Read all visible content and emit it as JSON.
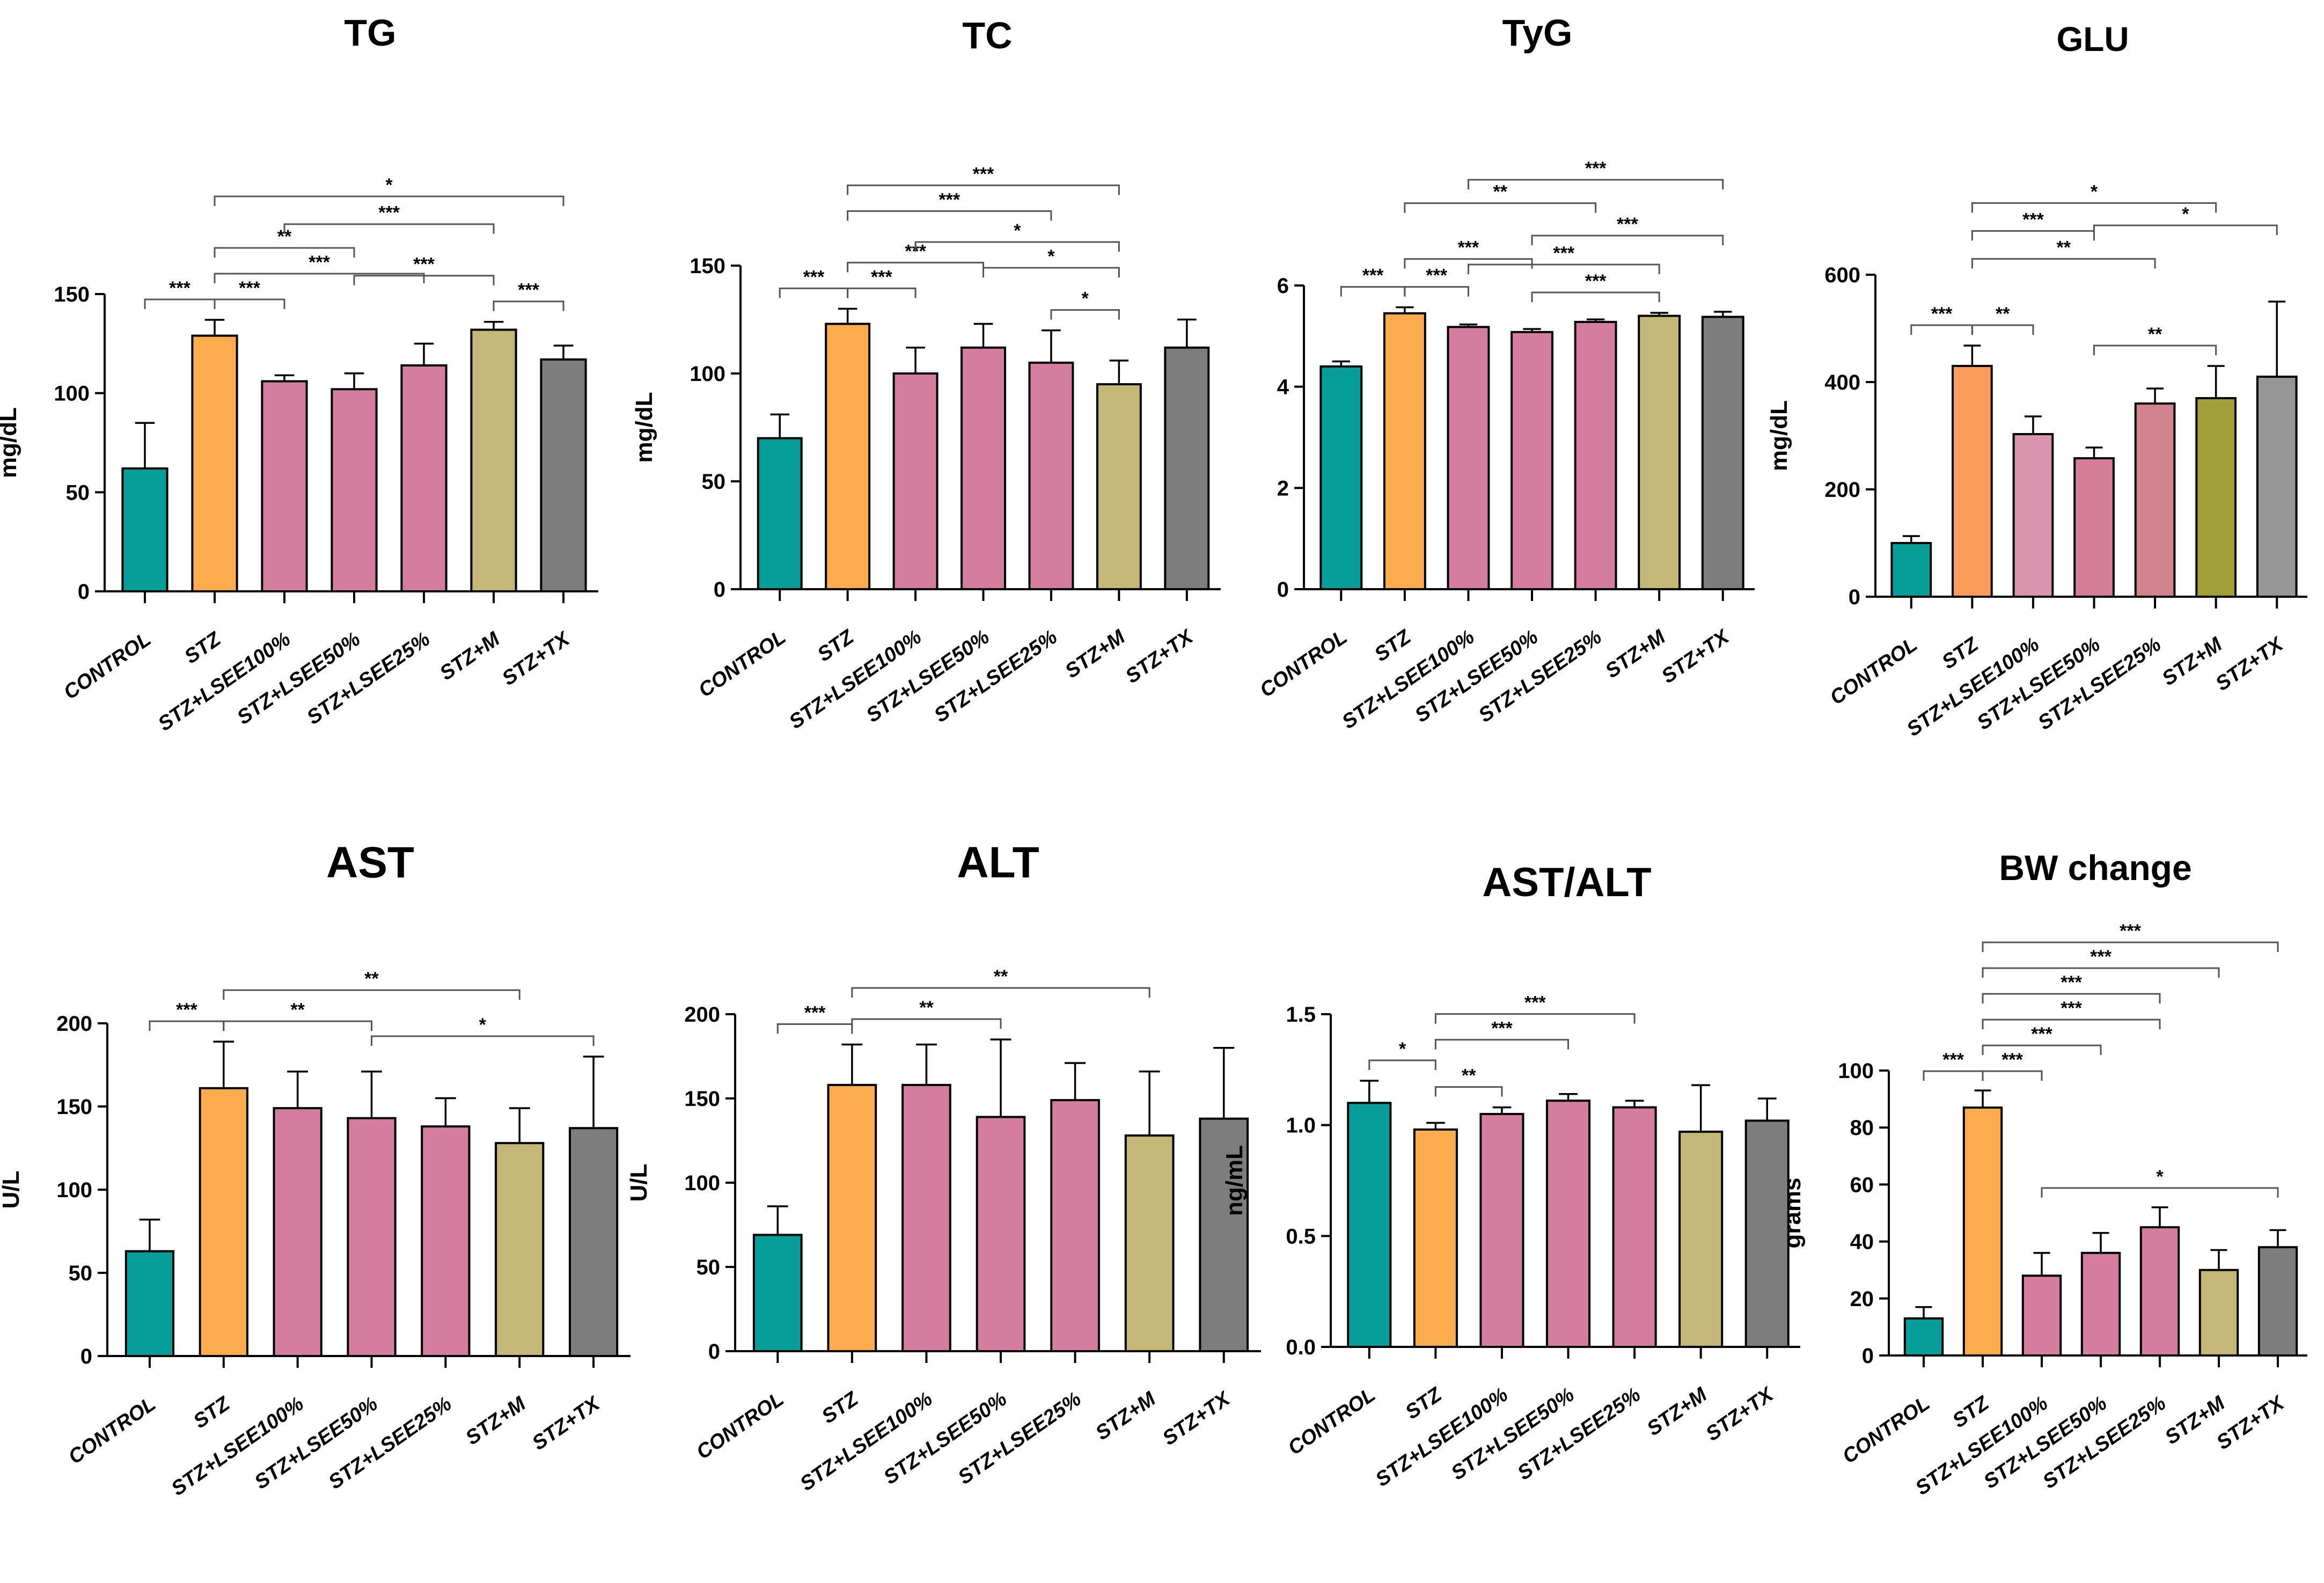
{
  "chart_data": [
    {
      "id": "tg",
      "type": "bar",
      "title": "TG",
      "ylabel": "mg/dL",
      "ylim": [
        0,
        150
      ],
      "yticks": [
        0,
        50,
        100,
        150
      ],
      "categories": [
        "CONTROL",
        "STZ",
        "STZ+LSEE100%",
        "STZ+LSEE50%",
        "STZ+LSEE25%",
        "STZ+M",
        "STZ+TX"
      ],
      "values": [
        62,
        129,
        106,
        102,
        114,
        132,
        117
      ],
      "errors": [
        23,
        8,
        3,
        8,
        11,
        4,
        7
      ],
      "colors": [
        "#079e9a",
        "#fcab4f",
        "#d57d9f",
        "#d57d9f",
        "#d57d9f",
        "#c4b777",
        "#7d7d7d"
      ],
      "significance": [
        {
          "from": 0,
          "to": 1,
          "label": "***"
        },
        {
          "from": 1,
          "to": 2,
          "label": "***"
        },
        {
          "from": 5,
          "to": 6,
          "label": "***"
        },
        {
          "from": 1,
          "to": 4,
          "label": "***"
        },
        {
          "from": 3,
          "to": 5,
          "label": "***"
        },
        {
          "from": 1,
          "to": 3,
          "label": "**"
        },
        {
          "from": 2,
          "to": 5,
          "label": "***"
        },
        {
          "from": 1,
          "to": 6,
          "label": "*"
        }
      ]
    },
    {
      "id": "tc",
      "type": "bar",
      "title": "TC",
      "ylabel": "mg/dL",
      "ylim": [
        0,
        150
      ],
      "yticks": [
        0,
        50,
        100,
        150
      ],
      "categories": [
        "CONTROL",
        "STZ",
        "STZ+LSEE100%",
        "STZ+LSEE50%",
        "STZ+LSEE25%",
        "STZ+M",
        "STZ+TX"
      ],
      "values": [
        70,
        123,
        100,
        112,
        105,
        95,
        112
      ],
      "errors": [
        11,
        7,
        12,
        11,
        15,
        11,
        13
      ],
      "colors": [
        "#079e9a",
        "#fcab4f",
        "#d57d9f",
        "#d57d9f",
        "#d57d9f",
        "#c4b777",
        "#7d7d7d"
      ],
      "significance": [
        {
          "from": 0,
          "to": 1,
          "label": "***"
        },
        {
          "from": 1,
          "to": 2,
          "label": "***"
        },
        {
          "from": 4,
          "to": 5,
          "label": "*"
        },
        {
          "from": 3,
          "to": 5,
          "label": "*"
        },
        {
          "from": 1,
          "to": 3,
          "label": "***"
        },
        {
          "from": 2,
          "to": 5,
          "label": "*"
        },
        {
          "from": 1,
          "to": 4,
          "label": "***"
        },
        {
          "from": 1,
          "to": 5,
          "label": "***"
        }
      ]
    },
    {
      "id": "tyg",
      "type": "bar",
      "title": "TyG",
      "ylabel": "",
      "ylim": [
        0,
        6
      ],
      "yticks": [
        0,
        2,
        4,
        6
      ],
      "categories": [
        "CONTROL",
        "STZ",
        "STZ+LSEE100%",
        "STZ+LSEE50%",
        "STZ+LSEE25%",
        "STZ+M",
        "STZ+TX"
      ],
      "values": [
        4.4,
        5.45,
        5.18,
        5.08,
        5.28,
        5.4,
        5.38
      ],
      "errors": [
        0.1,
        0.12,
        0.05,
        0.06,
        0.05,
        0.06,
        0.1
      ],
      "colors": [
        "#079e9a",
        "#fcab4f",
        "#d57d9f",
        "#d57d9f",
        "#d57d9f",
        "#c4b777",
        "#7d7d7d"
      ],
      "significance": [
        {
          "from": 0,
          "to": 1,
          "label": "***"
        },
        {
          "from": 1,
          "to": 2,
          "label": "***"
        },
        {
          "from": 3,
          "to": 5,
          "label": "***"
        },
        {
          "from": 2,
          "to": 5,
          "label": "***"
        },
        {
          "from": 1,
          "to": 3,
          "label": "***"
        },
        {
          "from": 3,
          "to": 6,
          "label": "***"
        },
        {
          "from": 1,
          "to": 4,
          "label": "**"
        },
        {
          "from": 2,
          "to": 6,
          "label": "***"
        }
      ]
    },
    {
      "id": "glu",
      "type": "bar",
      "title": "GLU",
      "ylabel": "mg/dL",
      "ylim": [
        0,
        600
      ],
      "yticks": [
        0,
        200,
        400,
        600
      ],
      "categories": [
        "CONTROL",
        "STZ",
        "STZ+LSEE100%",
        "STZ+LSEE50%",
        "STZ+LSEE25%",
        "STZ+M",
        "STZ+TX"
      ],
      "values": [
        100,
        430,
        303,
        258,
        360,
        370,
        410
      ],
      "errors": [
        13,
        38,
        33,
        20,
        28,
        60,
        140
      ],
      "colors": [
        "#079e9a",
        "#fc9d5c",
        "#d895ad",
        "#d67d99",
        "#d2848e",
        "#a3a03b",
        "#969696"
      ],
      "significance": [
        {
          "from": 0,
          "to": 1,
          "label": "***"
        },
        {
          "from": 1,
          "to": 2,
          "label": "**"
        },
        {
          "from": 3,
          "to": 5,
          "label": "**"
        },
        {
          "from": 1,
          "to": 4,
          "label": "**"
        },
        {
          "from": 1,
          "to": 3,
          "label": "***"
        },
        {
          "from": 3,
          "to": 6,
          "label": "*"
        },
        {
          "from": 1,
          "to": 5,
          "label": "*"
        }
      ]
    },
    {
      "id": "ast",
      "type": "bar",
      "title": "AST",
      "ylabel": "U/L",
      "ylim": [
        0,
        200
      ],
      "yticks": [
        0,
        50,
        100,
        150,
        200
      ],
      "categories": [
        "CONTROL",
        "STZ",
        "STZ+LSEE100%",
        "STZ+LSEE50%",
        "STZ+LSEE25%",
        "STZ+M",
        "STZ+TX"
      ],
      "values": [
        63,
        161,
        149,
        143,
        138,
        128,
        137
      ],
      "errors": [
        19,
        28,
        22,
        28,
        17,
        21,
        43
      ],
      "colors": [
        "#079e9a",
        "#fcab4f",
        "#d57d9f",
        "#d57d9f",
        "#d57d9f",
        "#c4b777",
        "#7d7d7d"
      ],
      "significance": [
        {
          "from": 0,
          "to": 1,
          "label": "***"
        },
        {
          "from": 1,
          "to": 3,
          "label": "**"
        },
        {
          "from": 3,
          "to": 6,
          "label": "*"
        },
        {
          "from": 1,
          "to": 5,
          "label": "**"
        }
      ]
    },
    {
      "id": "alt",
      "type": "bar",
      "title": "ALT",
      "ylabel": "U/L",
      "ylim": [
        0,
        200
      ],
      "yticks": [
        0,
        50,
        100,
        150,
        200
      ],
      "categories": [
        "CONTROL",
        "STZ",
        "STZ+LSEE100%",
        "STZ+LSEE50%",
        "STZ+LSEE25%",
        "STZ+M",
        "STZ+TX"
      ],
      "values": [
        69,
        158,
        158,
        139,
        149,
        128,
        138
      ],
      "errors": [
        17,
        24,
        24,
        46,
        22,
        38,
        42
      ],
      "colors": [
        "#079e9a",
        "#fcab4f",
        "#d57d9f",
        "#d57d9f",
        "#d57d9f",
        "#c4b777",
        "#7d7d7d"
      ],
      "significance": [
        {
          "from": 0,
          "to": 1,
          "label": "***"
        },
        {
          "from": 1,
          "to": 3,
          "label": "**"
        },
        {
          "from": 1,
          "to": 5,
          "label": "**"
        }
      ]
    },
    {
      "id": "astalt",
      "type": "bar",
      "title": "AST/ALT",
      "ylabel": "ng/mL",
      "ylim": [
        0,
        1.5
      ],
      "yticks": [
        0.0,
        0.5,
        1.0,
        1.5
      ],
      "categories": [
        "CONTROL",
        "STZ",
        "STZ+LSEE100%",
        "STZ+LSEE50%",
        "STZ+LSEE25%",
        "STZ+M",
        "STZ+TX"
      ],
      "values": [
        1.1,
        0.98,
        1.05,
        1.11,
        1.08,
        0.97,
        1.02
      ],
      "errors": [
        0.1,
        0.03,
        0.03,
        0.03,
        0.03,
        0.21,
        0.1
      ],
      "colors": [
        "#079e9a",
        "#fcab4f",
        "#d57d9f",
        "#d57d9f",
        "#d57d9f",
        "#c4b777",
        "#7d7d7d"
      ],
      "significance": [
        {
          "from": 0,
          "to": 1,
          "label": "*"
        },
        {
          "from": 1,
          "to": 2,
          "label": "**"
        },
        {
          "from": 1,
          "to": 3,
          "label": "***"
        },
        {
          "from": 1,
          "to": 4,
          "label": "***"
        }
      ]
    },
    {
      "id": "bw",
      "type": "bar",
      "title": "BW change",
      "ylabel": "grams",
      "ylim": [
        0,
        100
      ],
      "yticks": [
        0,
        20,
        40,
        60,
        80,
        100
      ],
      "categories": [
        "CONTROL",
        "STZ",
        "STZ+LSEE100%",
        "STZ+LSEE50%",
        "STZ+LSEE25%",
        "STZ+M",
        "STZ+TX"
      ],
      "values": [
        13,
        87,
        28,
        36,
        45,
        30,
        38
      ],
      "errors": [
        4,
        6,
        8,
        7,
        7,
        7,
        6
      ],
      "colors": [
        "#079e9a",
        "#fcab4f",
        "#d57d9f",
        "#d57d9f",
        "#d57d9f",
        "#c4b777",
        "#7d7d7d"
      ],
      "significance": [
        {
          "from": 0,
          "to": 1,
          "label": "***"
        },
        {
          "from": 1,
          "to": 2,
          "label": "***"
        },
        {
          "from": 2,
          "to": 6,
          "label": "*"
        },
        {
          "from": 1,
          "to": 3,
          "label": "***"
        },
        {
          "from": 1,
          "to": 4,
          "label": "***"
        },
        {
          "from": 1,
          "to": 4,
          "label": "***"
        },
        {
          "from": 1,
          "to": 5,
          "label": "***"
        },
        {
          "from": 1,
          "to": 6,
          "label": "***"
        }
      ]
    }
  ]
}
